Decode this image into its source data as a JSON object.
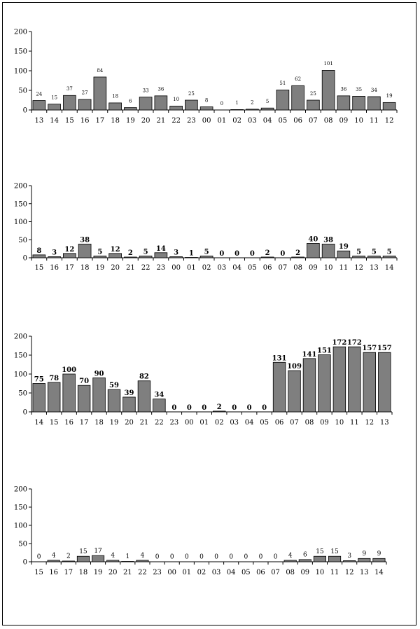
{
  "colors": {
    "bar_fill": "#7f7f7f",
    "bar_stroke": "#000000",
    "frame": "#000000"
  },
  "chart_data": [
    {
      "type": "bar",
      "ylim": [
        0,
        200
      ],
      "yticks": [
        0,
        50,
        100,
        150,
        200
      ],
      "grid": false,
      "categories": [
        "13",
        "14",
        "15",
        "16",
        "17",
        "18",
        "19",
        "20",
        "21",
        "22",
        "23",
        "00",
        "01",
        "02",
        "03",
        "04",
        "05",
        "06",
        "07",
        "08",
        "09",
        "10",
        "11",
        "12"
      ],
      "values": [
        24,
        15,
        37,
        27,
        84,
        18,
        6,
        33,
        36,
        10,
        25,
        8,
        0,
        1,
        2,
        5,
        51,
        62,
        25,
        101,
        36,
        35,
        34,
        19
      ],
      "data_labels": [
        "24",
        "15",
        "37",
        "27",
        "84",
        "18",
        "6",
        "33",
        "36",
        "10",
        "25",
        "8",
        "0",
        "1",
        "2",
        "5",
        "51",
        "62",
        "25",
        "101",
        "36",
        "35",
        "34",
        "19"
      ]
    },
    {
      "type": "bar",
      "ylim": [
        0,
        200
      ],
      "yticks": [
        0,
        50,
        100,
        150,
        200
      ],
      "grid": false,
      "categories": [
        "15",
        "16",
        "17",
        "18",
        "19",
        "20",
        "21",
        "22",
        "23",
        "00",
        "01",
        "02",
        "03",
        "04",
        "05",
        "06",
        "07",
        "08",
        "09",
        "10",
        "11",
        "12",
        "13",
        "14"
      ],
      "values": [
        8,
        3,
        12,
        38,
        5,
        12,
        2,
        5,
        14,
        3,
        1,
        5,
        0,
        0,
        0,
        2,
        0,
        2,
        40,
        38,
        19,
        5,
        5,
        5
      ],
      "data_labels": [
        "8",
        "3",
        "12",
        "38",
        "5",
        "12",
        "2",
        "5",
        "14",
        "3",
        "1",
        "5",
        "0",
        "0",
        "0",
        "2",
        "0",
        "2",
        "40",
        "38",
        "19",
        "5",
        "5",
        "5"
      ]
    },
    {
      "type": "bar",
      "ylim": [
        0,
        200
      ],
      "yticks": [
        0,
        50,
        100,
        150,
        200
      ],
      "grid": false,
      "categories": [
        "14",
        "15",
        "16",
        "17",
        "18",
        "19",
        "20",
        "21",
        "22",
        "23",
        "00",
        "01",
        "02",
        "03",
        "04",
        "05",
        "06",
        "07",
        "08",
        "09",
        "10",
        "11",
        "12",
        "13"
      ],
      "values": [
        75,
        78,
        100,
        70,
        90,
        59,
        39,
        82,
        34,
        0,
        0,
        0,
        2,
        0,
        0,
        0,
        131,
        109,
        141,
        151,
        172,
        172,
        157,
        157
      ],
      "data_labels": [
        "75",
        "78",
        "100",
        "70",
        "90",
        "59",
        "39",
        "82",
        "34",
        "0",
        "0",
        "0",
        "2",
        "0",
        "0",
        "0",
        "131",
        "109",
        "141",
        "151",
        "172",
        "172",
        "157",
        "157"
      ]
    },
    {
      "type": "bar",
      "ylim": [
        0,
        200
      ],
      "yticks": [
        0,
        50,
        100,
        150,
        200
      ],
      "grid": false,
      "categories": [
        "15",
        "16",
        "17",
        "18",
        "19",
        "20",
        "21",
        "22",
        "23",
        "00",
        "01",
        "02",
        "03",
        "04",
        "05",
        "06",
        "07",
        "08",
        "09",
        "10",
        "11",
        "12",
        "13",
        "14"
      ],
      "values": [
        0,
        4,
        2,
        15,
        17,
        4,
        1,
        4,
        0,
        0,
        0,
        0,
        0,
        0,
        0,
        0,
        0,
        4,
        6,
        15,
        15,
        3,
        9,
        9
      ],
      "data_labels": [
        "0",
        "4",
        "2",
        "15",
        "17",
        "4",
        "1",
        "4",
        "0",
        "0",
        "0",
        "0",
        "0",
        "0",
        "0",
        "0",
        "0",
        "4",
        "6",
        "15",
        "15",
        "3",
        "9",
        "9"
      ]
    }
  ]
}
